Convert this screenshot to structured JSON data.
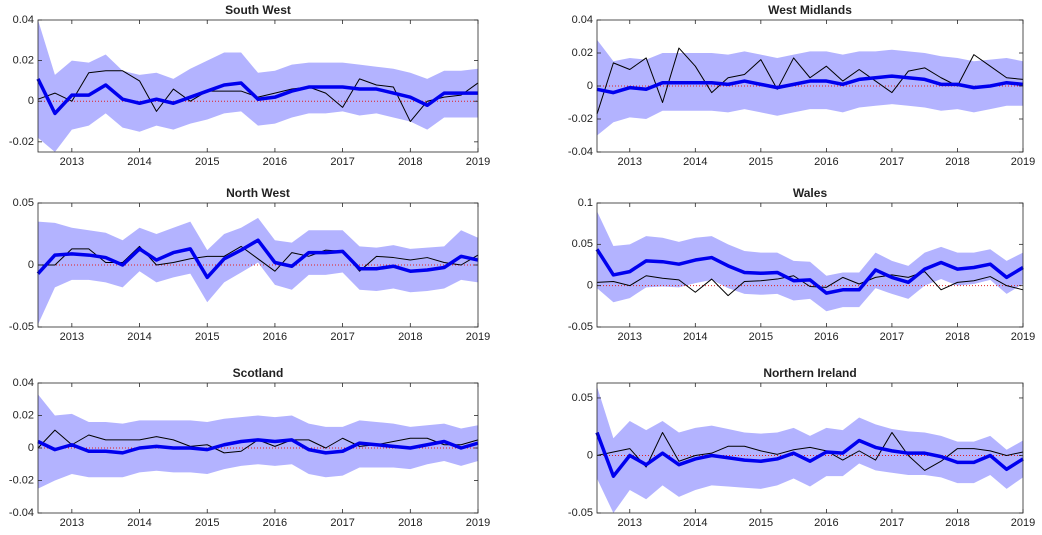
{
  "chart_data": [
    {
      "type": "line",
      "title": "South West",
      "x": [
        2012.5,
        2012.75,
        2013,
        2013.25,
        2013.5,
        2013.75,
        2014,
        2014.25,
        2014.5,
        2014.75,
        2015,
        2015.25,
        2015.5,
        2015.75,
        2016,
        2016.25,
        2016.5,
        2016.75,
        2017,
        2017.25,
        2017.5,
        2017.75,
        2018,
        2018.25,
        2018.5,
        2018.75,
        2019
      ],
      "xlim": [
        2012.5,
        2019
      ],
      "xticks": [
        2013,
        2014,
        2015,
        2016,
        2017,
        2018,
        2019
      ],
      "ylim": [
        -0.025,
        0.04
      ],
      "yticks": [
        -0.02,
        0,
        0.02,
        0.04
      ],
      "reference_line": {
        "value": 0,
        "color": "#e02020"
      },
      "band": {
        "color": "#b3b3ff",
        "upper": [
          0.04,
          0.013,
          0.02,
          0.019,
          0.023,
          0.015,
          0.013,
          0.014,
          0.011,
          0.016,
          0.02,
          0.024,
          0.024,
          0.014,
          0.015,
          0.018,
          0.019,
          0.019,
          0.019,
          0.018,
          0.017,
          0.016,
          0.014,
          0.011,
          0.015,
          0.015,
          0.016
        ],
        "lower": [
          -0.018,
          -0.025,
          -0.014,
          -0.012,
          -0.006,
          -0.013,
          -0.015,
          -0.012,
          -0.014,
          -0.011,
          -0.009,
          -0.006,
          -0.005,
          -0.012,
          -0.011,
          -0.008,
          -0.006,
          -0.006,
          -0.005,
          -0.007,
          -0.006,
          -0.008,
          -0.01,
          -0.014,
          -0.008,
          -0.008,
          -0.008
        ]
      },
      "series": [
        {
          "color": "#000000",
          "width": 1,
          "values": [
            0.001,
            0.004,
            0.0,
            0.014,
            0.015,
            0.015,
            0.01,
            -0.005,
            0.006,
            0.0,
            0.005,
            0.005,
            0.005,
            0.002,
            0.004,
            0.006,
            0.007,
            0.004,
            -0.003,
            0.011,
            0.008,
            0.007,
            -0.01,
            0.0,
            0.002,
            0.003,
            0.009
          ]
        },
        {
          "color": "#0000ee",
          "width": 3.5,
          "values": [
            0.011,
            -0.006,
            0.003,
            0.003,
            0.008,
            0.001,
            -0.001,
            0.001,
            -0.001,
            0.002,
            0.005,
            0.008,
            0.009,
            0.001,
            0.002,
            0.005,
            0.007,
            0.007,
            0.007,
            0.006,
            0.006,
            0.004,
            0.002,
            -0.002,
            0.004,
            0.004,
            0.004
          ]
        }
      ]
    },
    {
      "type": "line",
      "title": "West Midlands",
      "x": [
        2012.5,
        2012.75,
        2013,
        2013.25,
        2013.5,
        2013.75,
        2014,
        2014.25,
        2014.5,
        2014.75,
        2015,
        2015.25,
        2015.5,
        2015.75,
        2016,
        2016.25,
        2016.5,
        2016.75,
        2017,
        2017.25,
        2017.5,
        2017.75,
        2018,
        2018.25,
        2018.5,
        2018.75,
        2019
      ],
      "xlim": [
        2012.5,
        2019
      ],
      "xticks": [
        2013,
        2014,
        2015,
        2016,
        2017,
        2018,
        2019
      ],
      "ylim": [
        -0.04,
        0.04
      ],
      "yticks": [
        -0.04,
        -0.02,
        0,
        0.02,
        0.04
      ],
      "reference_line": {
        "value": 0,
        "color": "#e02020"
      },
      "band": {
        "color": "#b3b3ff",
        "upper": [
          0.028,
          0.015,
          0.017,
          0.016,
          0.02,
          0.02,
          0.02,
          0.02,
          0.019,
          0.021,
          0.019,
          0.017,
          0.019,
          0.021,
          0.021,
          0.019,
          0.021,
          0.021,
          0.022,
          0.021,
          0.02,
          0.018,
          0.017,
          0.015,
          0.016,
          0.017,
          0.015
        ],
        "lower": [
          -0.03,
          -0.022,
          -0.019,
          -0.02,
          -0.015,
          -0.015,
          -0.015,
          -0.015,
          -0.016,
          -0.014,
          -0.016,
          -0.018,
          -0.016,
          -0.014,
          -0.014,
          -0.016,
          -0.013,
          -0.012,
          -0.011,
          -0.012,
          -0.013,
          -0.015,
          -0.014,
          -0.016,
          -0.014,
          -0.012,
          -0.012
        ]
      },
      "series": [
        {
          "color": "#000000",
          "width": 1,
          "values": [
            -0.017,
            0.014,
            0.01,
            0.017,
            -0.01,
            0.023,
            0.012,
            -0.004,
            0.005,
            0.007,
            0.016,
            -0.002,
            0.017,
            0.005,
            0.012,
            0.003,
            0.01,
            0.003,
            -0.004,
            0.009,
            0.011,
            0.005,
            0.0,
            0.019,
            0.012,
            0.005,
            0.004
          ]
        },
        {
          "color": "#0000ee",
          "width": 3.5,
          "values": [
            -0.002,
            -0.004,
            -0.001,
            -0.002,
            0.002,
            0.002,
            0.002,
            0.002,
            0.001,
            0.003,
            0.001,
            -0.001,
            0.001,
            0.003,
            0.003,
            0.001,
            0.004,
            0.005,
            0.006,
            0.005,
            0.004,
            0.001,
            0.001,
            -0.001,
            0.0,
            0.002,
            0.001
          ]
        }
      ]
    },
    {
      "type": "line",
      "title": "North West",
      "x": [
        2012.5,
        2012.75,
        2013,
        2013.25,
        2013.5,
        2013.75,
        2014,
        2014.25,
        2014.5,
        2014.75,
        2015,
        2015.25,
        2015.5,
        2015.75,
        2016,
        2016.25,
        2016.5,
        2016.75,
        2017,
        2017.25,
        2017.5,
        2017.75,
        2018,
        2018.25,
        2018.5,
        2018.75,
        2019
      ],
      "xlim": [
        2012.5,
        2019
      ],
      "xticks": [
        2013,
        2014,
        2015,
        2016,
        2017,
        2018,
        2019
      ],
      "ylim": [
        -0.05,
        0.05
      ],
      "yticks": [
        -0.05,
        0,
        0.05
      ],
      "reference_line": {
        "value": 0,
        "color": "#e02020"
      },
      "band": {
        "color": "#b3b3ff",
        "upper": [
          0.035,
          0.034,
          0.03,
          0.028,
          0.026,
          0.02,
          0.03,
          0.025,
          0.03,
          0.035,
          0.012,
          0.025,
          0.03,
          0.038,
          0.02,
          0.018,
          0.028,
          0.028,
          0.028,
          0.015,
          0.014,
          0.016,
          0.013,
          0.014,
          0.015,
          0.028,
          0.022
        ],
        "lower": [
          -0.048,
          -0.018,
          -0.012,
          -0.012,
          -0.014,
          -0.018,
          -0.005,
          -0.014,
          -0.01,
          -0.007,
          -0.03,
          -0.014,
          -0.006,
          0.002,
          -0.016,
          -0.02,
          -0.008,
          -0.008,
          -0.006,
          -0.02,
          -0.021,
          -0.019,
          -0.022,
          -0.021,
          -0.019,
          -0.012,
          -0.014
        ]
      },
      "series": [
        {
          "color": "#000000",
          "width": 1,
          "values": [
            0.0,
            0.0,
            0.013,
            0.013,
            0.002,
            0.002,
            0.015,
            0.0,
            0.002,
            0.005,
            0.007,
            0.007,
            0.015,
            0.005,
            -0.005,
            0.01,
            0.007,
            0.012,
            0.011,
            -0.005,
            0.007,
            0.006,
            0.004,
            0.006,
            0.002,
            0.0,
            0.008
          ]
        },
        {
          "color": "#0000ee",
          "width": 3.5,
          "values": [
            -0.007,
            0.008,
            0.009,
            0.008,
            0.006,
            0.0,
            0.013,
            0.004,
            0.01,
            0.013,
            -0.01,
            0.005,
            0.012,
            0.02,
            0.002,
            -0.001,
            0.01,
            0.01,
            0.011,
            -0.003,
            -0.003,
            -0.001,
            -0.005,
            -0.004,
            -0.002,
            0.007,
            0.004
          ]
        }
      ]
    },
    {
      "type": "line",
      "title": "Wales",
      "x": [
        2012.5,
        2012.75,
        2013,
        2013.25,
        2013.5,
        2013.75,
        2014,
        2014.25,
        2014.5,
        2014.75,
        2015,
        2015.25,
        2015.5,
        2015.75,
        2016,
        2016.25,
        2016.5,
        2016.75,
        2017,
        2017.25,
        2017.5,
        2017.75,
        2018,
        2018.25,
        2018.5,
        2018.75,
        2019
      ],
      "xlim": [
        2012.5,
        2019
      ],
      "xticks": [
        2013,
        2014,
        2015,
        2016,
        2017,
        2018,
        2019
      ],
      "ylim": [
        -0.05,
        0.1
      ],
      "yticks": [
        -0.05,
        0,
        0.05,
        0.1
      ],
      "reference_line": {
        "value": 0,
        "color": "#e02020"
      },
      "band": {
        "color": "#b3b3ff",
        "upper": [
          0.09,
          0.048,
          0.05,
          0.06,
          0.058,
          0.053,
          0.058,
          0.06,
          0.05,
          0.042,
          0.04,
          0.04,
          0.03,
          0.029,
          0.012,
          0.016,
          0.016,
          0.04,
          0.03,
          0.024,
          0.04,
          0.047,
          0.04,
          0.04,
          0.044,
          0.03,
          0.04
        ],
        "lower": [
          -0.003,
          -0.02,
          -0.015,
          -0.002,
          -0.001,
          -0.002,
          0.003,
          0.007,
          -0.003,
          -0.01,
          -0.011,
          -0.01,
          -0.018,
          -0.016,
          -0.031,
          -0.026,
          -0.026,
          -0.003,
          -0.01,
          -0.016,
          0.0,
          0.008,
          0.0,
          0.002,
          0.007,
          -0.01,
          0.002
        ]
      },
      "series": [
        {
          "color": "#000000",
          "width": 1,
          "values": [
            0.004,
            0.005,
            0.0,
            0.012,
            0.009,
            0.007,
            -0.008,
            0.008,
            -0.012,
            0.005,
            0.006,
            0.008,
            0.012,
            -0.001,
            -0.002,
            0.01,
            0.002,
            0.01,
            0.013,
            0.01,
            0.017,
            -0.005,
            0.004,
            0.006,
            0.011,
            0.0,
            -0.005
          ]
        },
        {
          "color": "#0000ee",
          "width": 3.5,
          "values": [
            0.044,
            0.013,
            0.017,
            0.03,
            0.029,
            0.026,
            0.031,
            0.034,
            0.024,
            0.016,
            0.015,
            0.016,
            0.006,
            0.007,
            -0.009,
            -0.005,
            -0.005,
            0.019,
            0.01,
            0.004,
            0.02,
            0.028,
            0.02,
            0.022,
            0.026,
            0.01,
            0.022
          ]
        }
      ]
    },
    {
      "type": "line",
      "title": "Scotland",
      "x": [
        2012.5,
        2012.75,
        2013,
        2013.25,
        2013.5,
        2013.75,
        2014,
        2014.25,
        2014.5,
        2014.75,
        2015,
        2015.25,
        2015.5,
        2015.75,
        2016,
        2016.25,
        2016.5,
        2016.75,
        2017,
        2017.25,
        2017.5,
        2017.75,
        2018,
        2018.25,
        2018.5,
        2018.75,
        2019
      ],
      "xlim": [
        2012.5,
        2019
      ],
      "xticks": [
        2013,
        2014,
        2015,
        2016,
        2017,
        2018,
        2019
      ],
      "ylim": [
        -0.04,
        0.04
      ],
      "yticks": [
        -0.04,
        -0.02,
        0,
        0.02,
        0.04
      ],
      "reference_line": {
        "value": 0,
        "color": "#e02020"
      },
      "band": {
        "color": "#b3b3ff",
        "upper": [
          0.033,
          0.02,
          0.021,
          0.016,
          0.016,
          0.015,
          0.017,
          0.017,
          0.017,
          0.017,
          0.016,
          0.018,
          0.019,
          0.02,
          0.019,
          0.02,
          0.015,
          0.013,
          0.013,
          0.017,
          0.016,
          0.015,
          0.013,
          0.014,
          0.015,
          0.012,
          0.014
        ],
        "lower": [
          -0.025,
          -0.02,
          -0.016,
          -0.018,
          -0.018,
          -0.018,
          -0.015,
          -0.014,
          -0.015,
          -0.015,
          -0.016,
          -0.013,
          -0.011,
          -0.01,
          -0.011,
          -0.01,
          -0.016,
          -0.018,
          -0.017,
          -0.012,
          -0.012,
          -0.012,
          -0.013,
          -0.01,
          -0.008,
          -0.011,
          -0.008
        ]
      },
      "series": [
        {
          "color": "#000000",
          "width": 1,
          "values": [
            0.0,
            0.011,
            0.002,
            0.008,
            0.005,
            0.005,
            0.005,
            0.007,
            0.005,
            0.001,
            0.002,
            -0.003,
            -0.002,
            0.005,
            0.001,
            0.005,
            0.005,
            0.0,
            0.006,
            0.001,
            0.002,
            0.004,
            0.006,
            0.006,
            0.002,
            0.002,
            0.005
          ]
        },
        {
          "color": "#0000ee",
          "width": 3.5,
          "values": [
            0.004,
            -0.001,
            0.002,
            -0.002,
            -0.002,
            -0.003,
            0.0,
            0.001,
            0.0,
            0.0,
            -0.001,
            0.002,
            0.004,
            0.005,
            0.004,
            0.005,
            -0.001,
            -0.003,
            -0.002,
            0.003,
            0.002,
            0.001,
            0.0,
            0.002,
            0.004,
            0.0,
            0.003
          ]
        }
      ]
    },
    {
      "type": "line",
      "title": "Northern Ireland",
      "x": [
        2012.5,
        2012.75,
        2013,
        2013.25,
        2013.5,
        2013.75,
        2014,
        2014.25,
        2014.5,
        2014.75,
        2015,
        2015.25,
        2015.5,
        2015.75,
        2016,
        2016.25,
        2016.5,
        2016.75,
        2017,
        2017.25,
        2017.5,
        2017.75,
        2018,
        2018.25,
        2018.5,
        2018.75,
        2019
      ],
      "xlim": [
        2012.5,
        2019
      ],
      "xticks": [
        2013,
        2014,
        2015,
        2016,
        2017,
        2018,
        2019
      ],
      "ylim": [
        -0.05,
        0.063
      ],
      "yticks": [
        -0.05,
        0,
        0.05
      ],
      "reference_line": {
        "value": 0,
        "color": "#e02020"
      },
      "band": {
        "color": "#b3b3ff",
        "upper": [
          0.06,
          0.015,
          0.03,
          0.022,
          0.03,
          0.02,
          0.024,
          0.026,
          0.023,
          0.02,
          0.019,
          0.02,
          0.024,
          0.017,
          0.024,
          0.022,
          0.033,
          0.027,
          0.023,
          0.021,
          0.02,
          0.017,
          0.012,
          0.012,
          0.017,
          0.005,
          0.013
        ],
        "lower": [
          -0.02,
          -0.05,
          -0.03,
          -0.038,
          -0.026,
          -0.036,
          -0.03,
          -0.026,
          -0.027,
          -0.028,
          -0.029,
          -0.026,
          -0.02,
          -0.027,
          -0.018,
          -0.018,
          -0.007,
          -0.013,
          -0.015,
          -0.017,
          -0.017,
          -0.019,
          -0.024,
          -0.024,
          -0.017,
          -0.029,
          -0.019
        ]
      },
      "series": [
        {
          "color": "#000000",
          "width": 1,
          "values": [
            0.0,
            0.003,
            0.006,
            -0.01,
            0.02,
            -0.005,
            0.0,
            0.002,
            0.008,
            0.008,
            0.004,
            0.001,
            0.005,
            0.007,
            0.004,
            -0.004,
            0.004,
            -0.004,
            0.02,
            0.0,
            -0.013,
            -0.005,
            0.006,
            0.006,
            0.004,
            0.0,
            0.003
          ]
        },
        {
          "color": "#0000ee",
          "width": 3.5,
          "values": [
            0.02,
            -0.018,
            0.0,
            -0.008,
            0.002,
            -0.008,
            -0.003,
            0.0,
            -0.002,
            -0.004,
            -0.005,
            -0.003,
            0.002,
            -0.005,
            0.003,
            0.002,
            0.013,
            0.007,
            0.004,
            0.002,
            0.002,
            -0.001,
            -0.006,
            -0.006,
            0.0,
            -0.012,
            -0.003
          ]
        }
      ]
    }
  ]
}
